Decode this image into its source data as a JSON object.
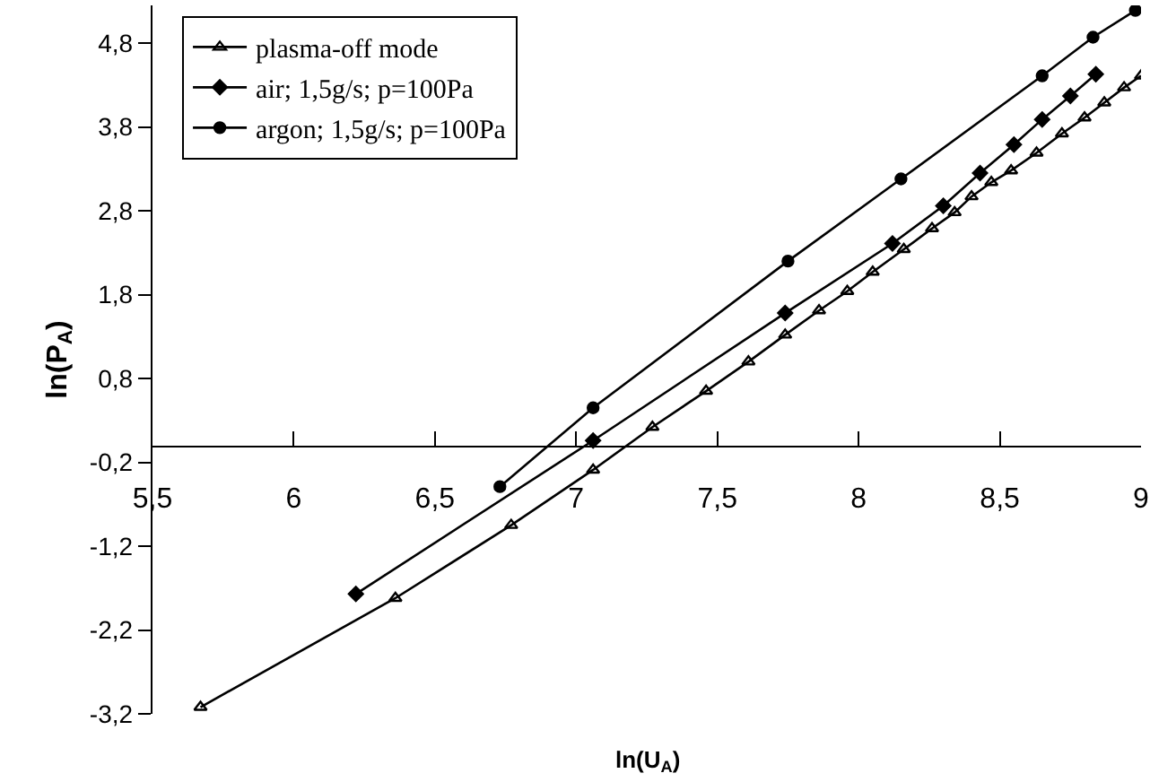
{
  "chart_data": {
    "type": "line",
    "xlabel": "ln(U$_{A}$)",
    "ylabel": "ln(P$_{A}$)",
    "xlim": [
      5.5,
      9
    ],
    "ylim": [
      -3.2,
      5.25
    ],
    "xticks": [
      {
        "value": 5.5,
        "label": "5,5"
      },
      6,
      {
        "value": 6.5,
        "label": "6,5"
      },
      7,
      {
        "value": 7.5,
        "label": "7,5"
      },
      8,
      {
        "value": 8.5,
        "label": "8,5"
      },
      9
    ],
    "yticks": [
      {
        "value": -3.2,
        "label": "-3,2"
      },
      {
        "value": -2.2,
        "label": "-2,2"
      },
      {
        "value": -1.2,
        "label": "-1,2"
      },
      {
        "value": -0.2,
        "label": "-0,2"
      },
      {
        "value": 0.8,
        "label": "0,8"
      },
      {
        "value": 1.8,
        "label": "1,8"
      },
      {
        "value": 2.8,
        "label": "2,8"
      },
      {
        "value": 3.8,
        "label": "3,8"
      },
      {
        "value": 4.8,
        "label": "4,8"
      }
    ],
    "grid": false,
    "legend": "top left",
    "line_style": "solid",
    "series": [
      {
        "name": "plasma-off mode",
        "color": "#000000",
        "marker": "triangle",
        "x": [
          5.67,
          6.36,
          6.77,
          7.06,
          7.27,
          7.46,
          7.61,
          7.74,
          7.86,
          7.96,
          8.05,
          8.16,
          8.26,
          8.34,
          8.4,
          8.47,
          8.54,
          8.63,
          8.72,
          8.8,
          8.87,
          8.94,
          9.0
        ],
        "values": [
          -3.12,
          -1.82,
          -0.95,
          -0.29,
          0.22,
          0.65,
          1.0,
          1.32,
          1.61,
          1.84,
          2.07,
          2.34,
          2.59,
          2.78,
          2.97,
          3.14,
          3.28,
          3.49,
          3.72,
          3.91,
          4.09,
          4.27,
          4.41
        ]
      },
      {
        "name": "air; 1,5g/s; p=100Pa",
        "color": "#000000",
        "marker": "diamond",
        "x": [
          6.22,
          7.06,
          7.74,
          8.12,
          8.3,
          8.43,
          8.55,
          8.65,
          8.75,
          8.84
        ],
        "values": [
          -1.77,
          0.06,
          1.58,
          2.41,
          2.86,
          3.25,
          3.59,
          3.89,
          4.17,
          4.43
        ]
      },
      {
        "name": "argon; 1,5g/s; p=100Pa",
        "color": "#000000",
        "marker": "circle",
        "x": [
          6.73,
          7.06,
          7.75,
          8.15,
          8.65,
          8.83,
          8.98
        ],
        "values": [
          -0.49,
          0.45,
          2.2,
          3.18,
          4.41,
          4.87,
          5.19
        ]
      }
    ]
  }
}
